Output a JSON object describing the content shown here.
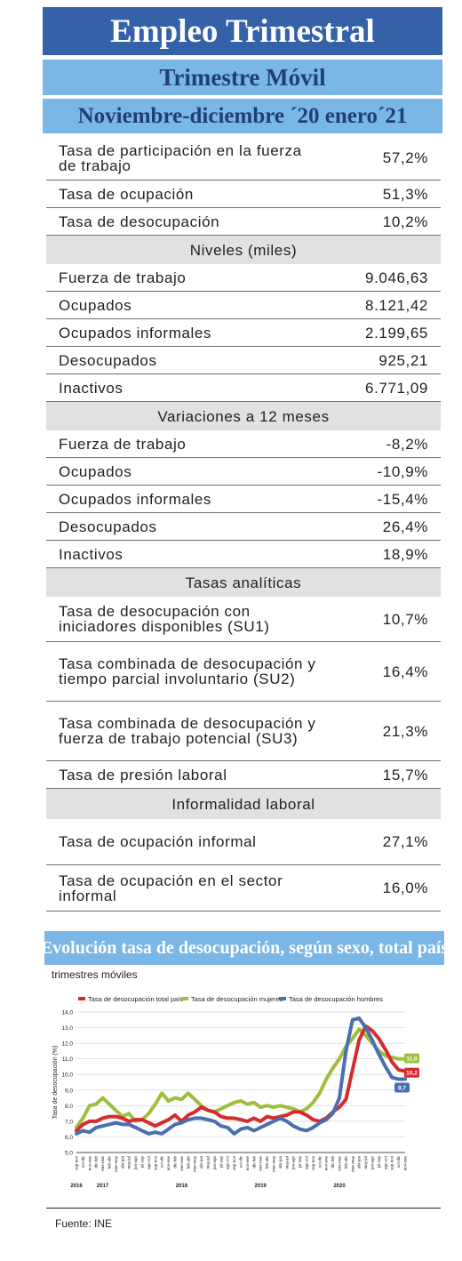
{
  "header": {
    "title": "Empleo Trimestral",
    "subtitle": "Trimestre Móvil",
    "period": "Noviembre-diciembre ´20 enero´21"
  },
  "rows": [
    {
      "type": "row",
      "label": "Tasa de participación en la fuerza de trabajo",
      "value": "57,2%"
    },
    {
      "type": "row",
      "label": "Tasa de ocupación",
      "value": "51,3%"
    },
    {
      "type": "row",
      "label": "Tasa de desocupación",
      "value": "10,2%"
    },
    {
      "type": "section",
      "label": "Niveles (miles)"
    },
    {
      "type": "row",
      "label": "Fuerza de trabajo",
      "value": "9.046,63"
    },
    {
      "type": "row",
      "label": "Ocupados",
      "value": "8.121,42"
    },
    {
      "type": "row",
      "label": "Ocupados informales",
      "value": "2.199,65"
    },
    {
      "type": "row",
      "label": "Desocupados",
      "value": "925,21"
    },
    {
      "type": "row",
      "label": "Inactivos",
      "value": "6.771,09"
    },
    {
      "type": "section",
      "label": "Variaciones a 12 meses"
    },
    {
      "type": "row",
      "label": "Fuerza de trabajo",
      "value": "-8,2%"
    },
    {
      "type": "row",
      "label": "Ocupados",
      "value": "-10,9%"
    },
    {
      "type": "row",
      "label": "Ocupados informales",
      "value": "-15,4%"
    },
    {
      "type": "row",
      "label": "Desocupados",
      "value": "26,4%"
    },
    {
      "type": "row",
      "label": "Inactivos",
      "value": "18,9%"
    },
    {
      "type": "section",
      "label": "Tasas analíticas"
    },
    {
      "type": "row",
      "label": "Tasa de desocupación con iniciadores disponibles (SU1)",
      "value": "10,7%"
    },
    {
      "type": "row",
      "label": "Tasa combinada de desocupación y tiempo parcial involuntario (SU2)",
      "value": "16,4%"
    },
    {
      "type": "row",
      "label": "Tasa combinada de desocupación y fuerza de trabajo potencial (SU3)",
      "value": "21,3%"
    },
    {
      "type": "row",
      "label": "Tasa de presión laboral",
      "value": "15,7%"
    },
    {
      "type": "section",
      "label": "Informalidad laboral"
    },
    {
      "type": "row",
      "label": "Tasa de ocupación informal",
      "value": "27,1%"
    },
    {
      "type": "row",
      "label": "Tasa de ocupación en el sector informal",
      "value": "16,0%"
    }
  ],
  "chart_data": {
    "type": "line",
    "title": "Evolución tasa de desocupación, según sexo, total país",
    "subtitle": "trimestres móviles",
    "ylabel": "Tasa de desocupación (%)",
    "ylim": [
      5.0,
      14.0
    ],
    "yticks": [
      "5,0",
      "6,0",
      "7,0",
      "8,0",
      "9,0",
      "10,0",
      "11,0",
      "12,0",
      "13,0",
      "14,0"
    ],
    "grid": true,
    "legend_position": "top",
    "x": [
      "sep-nov",
      "oct-dic",
      "nov-ene",
      "dic-feb",
      "ene-mar",
      "feb-abr",
      "mar-may",
      "abr-jun",
      "may-jul",
      "jun-ago",
      "jul-sep",
      "ago-oct",
      "sep-nov",
      "oct-dic",
      "nov-ene",
      "dic-feb",
      "ene-mar",
      "feb-abr",
      "mar-may",
      "abr-jun",
      "may-jul",
      "jun-ago",
      "jul-sep",
      "ago-oct",
      "sep-nov",
      "oct-dic",
      "nov-ene",
      "dic-feb",
      "ene-mar",
      "feb-abr",
      "mar-may",
      "abr-jun",
      "may-jul",
      "jun-ago",
      "jul-sep",
      "ago-oct",
      "sep-nov",
      "oct-dic",
      "nov-ene",
      "dic-feb",
      "ene-mar",
      "feb-abr",
      "mar-may",
      "abr-jun",
      "may-jul",
      "jun-ago",
      "jul-sep",
      "ago-oct",
      "sep-nov",
      "oct-dic",
      "nov-ene"
    ],
    "years": [
      {
        "label": "2016",
        "index": 0
      },
      {
        "label": "2017",
        "index": 4
      },
      {
        "label": "2018",
        "index": 16
      },
      {
        "label": "2019",
        "index": 28
      },
      {
        "label": "2020",
        "index": 40
      }
    ],
    "series": [
      {
        "name": "Tasa de desocupación total país",
        "color": "#d62a2e",
        "values": [
          6.4,
          6.8,
          7.0,
          7.0,
          7.2,
          7.3,
          7.3,
          7.2,
          7.0,
          7.1,
          7.1,
          6.9,
          6.7,
          6.9,
          7.1,
          7.4,
          7.0,
          7.4,
          7.6,
          7.9,
          7.7,
          7.6,
          7.3,
          7.2,
          7.2,
          7.1,
          7.0,
          7.2,
          7.0,
          7.3,
          7.2,
          7.3,
          7.4,
          7.6,
          7.6,
          7.4,
          7.1,
          7.0,
          7.2,
          7.6,
          7.9,
          8.4,
          10.3,
          12.2,
          13.1,
          12.8,
          12.3,
          11.6,
          10.8,
          10.3,
          10.2
        ],
        "end_label": "10,2"
      },
      {
        "name": "Tasa de desocupación mujeres",
        "color": "#9fbf3b",
        "values": [
          6.6,
          7.2,
          8.0,
          8.1,
          8.5,
          8.1,
          7.7,
          7.3,
          7.5,
          7.0,
          7.1,
          7.5,
          8.1,
          8.8,
          8.3,
          8.5,
          8.4,
          8.8,
          8.4,
          8.0,
          7.7,
          7.6,
          7.8,
          8.0,
          8.2,
          8.3,
          8.1,
          8.2,
          7.9,
          8.0,
          7.9,
          8.0,
          7.9,
          7.8,
          7.6,
          7.8,
          8.2,
          8.8,
          9.7,
          10.4,
          11.0,
          11.8,
          12.3,
          12.9,
          12.5,
          12.0,
          11.5,
          11.2,
          11.1,
          11.0,
          11.0
        ],
        "end_label": "11,0"
      },
      {
        "name": "Tasa de desocupación hombres",
        "color": "#4a6fb1",
        "values": [
          6.2,
          6.4,
          6.3,
          6.6,
          6.7,
          6.8,
          6.9,
          6.8,
          6.8,
          6.6,
          6.4,
          6.2,
          6.3,
          6.2,
          6.5,
          6.8,
          6.9,
          7.1,
          7.2,
          7.2,
          7.1,
          7.0,
          6.7,
          6.6,
          6.2,
          6.5,
          6.6,
          6.4,
          6.6,
          6.8,
          7.0,
          7.2,
          7.0,
          6.7,
          6.5,
          6.4,
          6.6,
          6.9,
          7.1,
          7.5,
          8.5,
          11.5,
          13.5,
          13.6,
          13.0,
          12.2,
          11.3,
          10.5,
          9.8,
          9.7,
          9.7
        ],
        "end_label": "9,7"
      }
    ]
  },
  "footer": {
    "source": "Fuente: INE"
  }
}
